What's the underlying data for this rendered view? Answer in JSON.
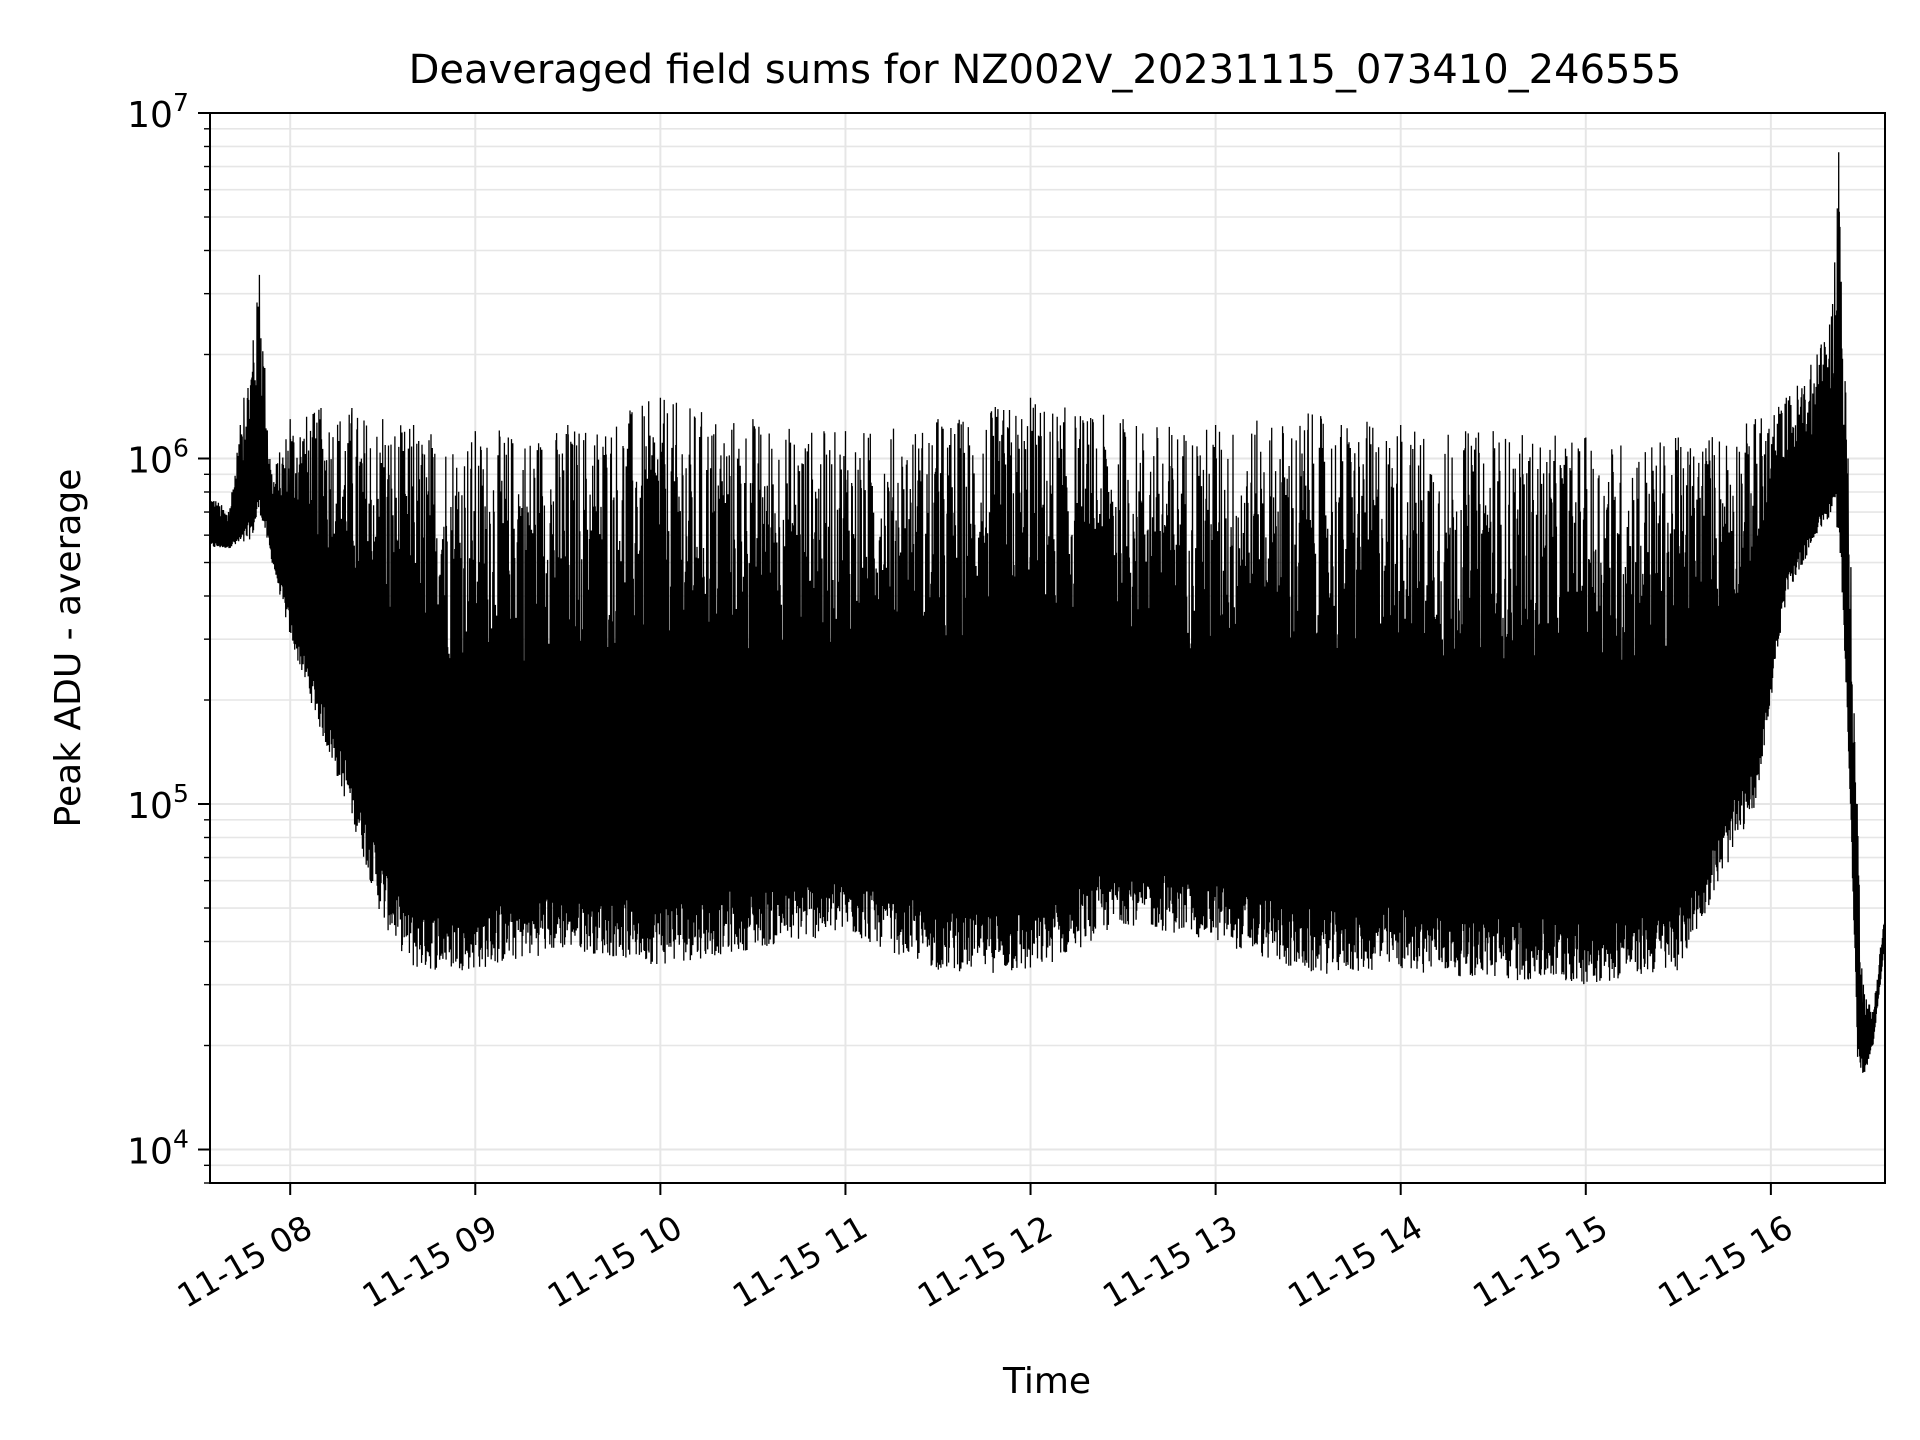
{
  "chart_data": {
    "type": "line",
    "title": "Deaveraged field sums for NZ002V_20231115_073410_246555",
    "xlabel": "Time",
    "ylabel": "Peak ADU - average",
    "yscale": "log",
    "ylim": [
      8000,
      10000000
    ],
    "xlim": [
      "2023-11-15 07:34",
      "2023-11-15 16:37"
    ],
    "grid": true,
    "x_ticks": [
      {
        "value": "2023-11-15 08:00",
        "label": "11-15 08"
      },
      {
        "value": "2023-11-15 09:00",
        "label": "11-15 09"
      },
      {
        "value": "2023-11-15 10:00",
        "label": "11-15 10"
      },
      {
        "value": "2023-11-15 11:00",
        "label": "11-15 11"
      },
      {
        "value": "2023-11-15 12:00",
        "label": "11-15 12"
      },
      {
        "value": "2023-11-15 13:00",
        "label": "11-15 13"
      },
      {
        "value": "2023-11-15 14:00",
        "label": "11-15 14"
      },
      {
        "value": "2023-11-15 15:00",
        "label": "11-15 15"
      },
      {
        "value": "2023-11-15 16:00",
        "label": "11-15 16"
      }
    ],
    "y_ticks": [
      {
        "value": 10000,
        "base": "10",
        "exp": "4"
      },
      {
        "value": 100000,
        "base": "10",
        "exp": "5"
      },
      {
        "value": 1000000,
        "base": "10",
        "exp": "6"
      },
      {
        "value": 10000000,
        "base": "10",
        "exp": "7"
      }
    ],
    "line_color": "#000000",
    "grid_color": "#e6e6e6",
    "series": [
      {
        "x": [
          "2023-11-15 07:34",
          "2023-11-15 07:40",
          "2023-11-15 07:45",
          "2023-11-15 07:48",
          "2023-11-15 07:50",
          "2023-11-15 07:54",
          "2023-11-15 08:00",
          "2023-11-15 08:10",
          "2023-11-15 08:20",
          "2023-11-15 08:30",
          "2023-11-15 08:40",
          "2023-11-15 09:00",
          "2023-11-15 09:30",
          "2023-11-15 10:00",
          "2023-11-15 10:30",
          "2023-11-15 11:00",
          "2023-11-15 11:30",
          "2023-11-15 12:00",
          "2023-11-15 12:30",
          "2023-11-15 13:00",
          "2023-11-15 13:30",
          "2023-11-15 14:00",
          "2023-11-15 14:30",
          "2023-11-15 15:00",
          "2023-11-15 15:30",
          "2023-11-15 15:55",
          "2023-11-15 16:05",
          "2023-11-15 16:15",
          "2023-11-15 16:20",
          "2023-11-15 16:22",
          "2023-11-15 16:25",
          "2023-11-15 16:28",
          "2023-11-15 16:30",
          "2023-11-15 16:33",
          "2023-11-15 16:37"
        ],
        "lower": [
          550000,
          550000,
          560000,
          600000,
          700000,
          500000,
          300000,
          160000,
          90000,
          45000,
          33000,
          33000,
          38000,
          34000,
          38000,
          42000,
          33000,
          32000,
          45000,
          40000,
          32000,
          33000,
          31000,
          30000,
          33000,
          100000,
          400000,
          600000,
          700000,
          600000,
          150000,
          18000,
          16000,
          20000,
          40000
        ],
        "upper": [
          800000,
          700000,
          1500000,
          2200000,
          3400000,
          900000,
          1300000,
          1400000,
          1400000,
          1300000,
          1250000,
          1200000,
          1250000,
          1500000,
          1300000,
          1200000,
          1300000,
          1500000,
          1300000,
          1250000,
          1350000,
          1250000,
          1200000,
          1150000,
          1150000,
          1300000,
          1500000,
          2000000,
          2800000,
          7700000,
          1000000,
          100000,
          30000,
          25000,
          50000
        ]
      }
    ]
  }
}
